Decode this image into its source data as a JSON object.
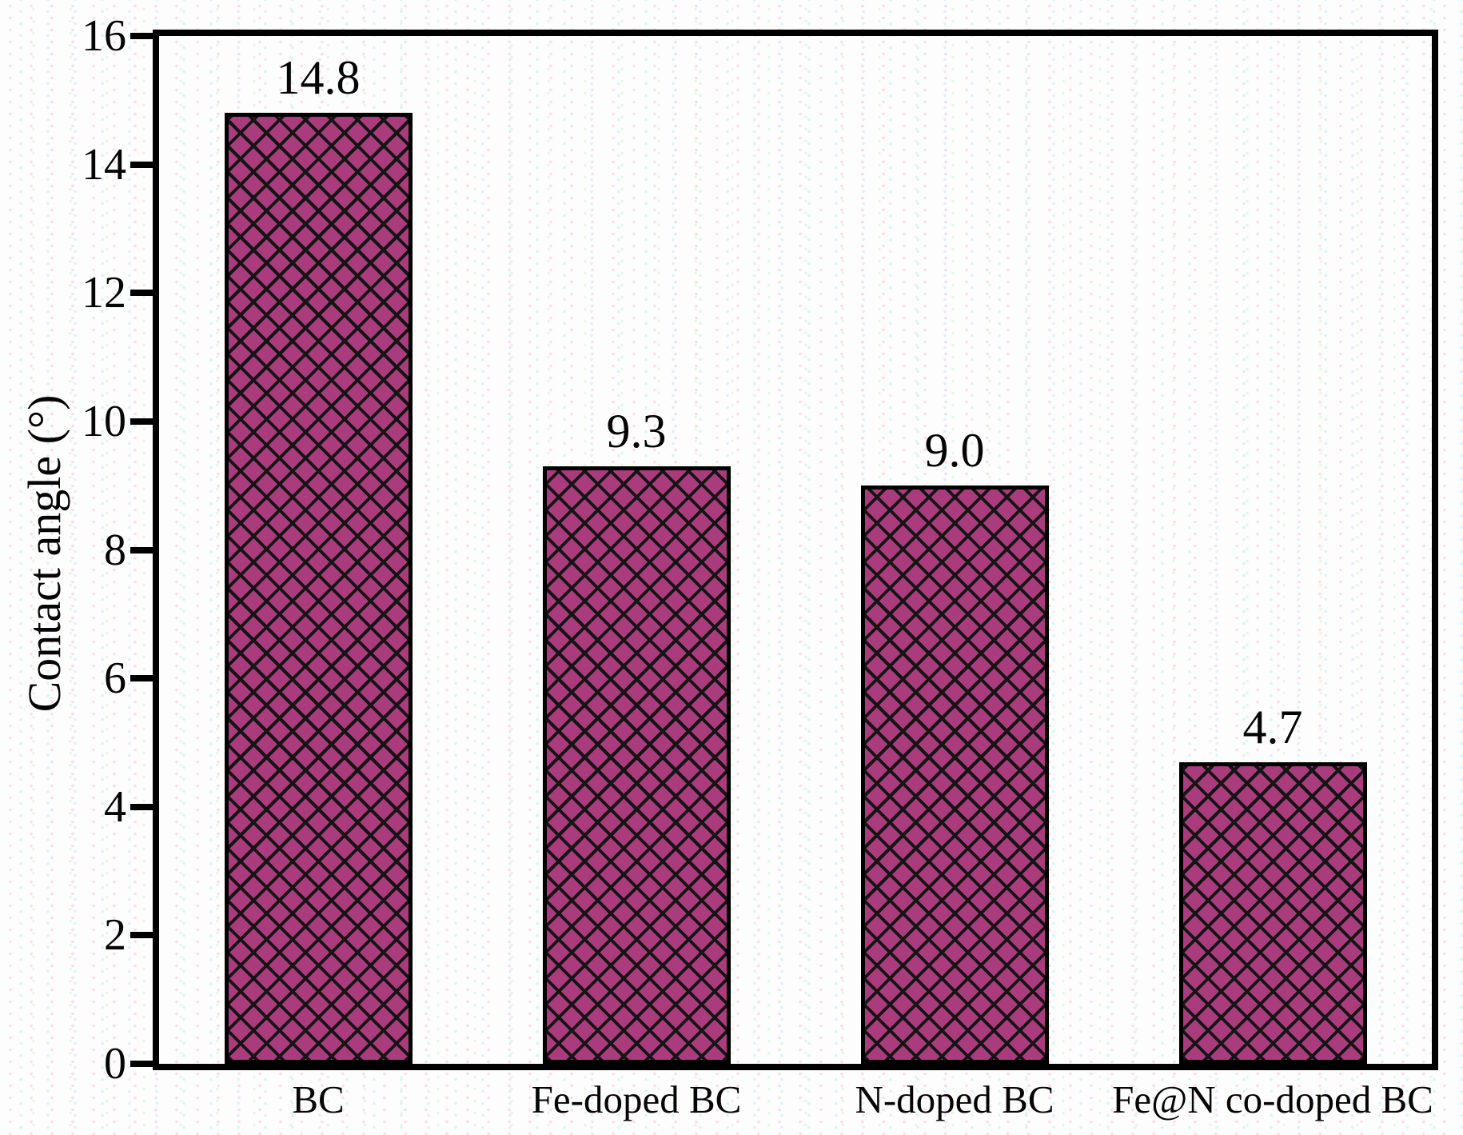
{
  "chart_data": {
    "type": "bar",
    "title": "",
    "xlabel": "",
    "ylabel": "Contact angle (°)",
    "categories": [
      "BC",
      "Fe-doped BC",
      "N-doped BC",
      "Fe@N co-doped BC"
    ],
    "values": [
      14.8,
      9.3,
      9.0,
      4.7
    ],
    "value_labels": [
      "14.8",
      "9.3",
      "9.0",
      "4.7"
    ],
    "ylim": [
      0,
      16
    ],
    "yticks": [
      0,
      2,
      4,
      6,
      8,
      10,
      12,
      14,
      16
    ],
    "ytick_labels": [
      "0",
      "2",
      "4",
      "6",
      "8",
      "10",
      "12",
      "14",
      "16"
    ],
    "grid": false,
    "legend_position": "none",
    "bar_fill_color": "#aa3b7c",
    "hatch_pattern": "diagonal-crosshatch",
    "hatch_color": "#151515",
    "axis_frame_color": "#000000",
    "text_color": "#050505",
    "background_color": "#fdfdfd"
  }
}
